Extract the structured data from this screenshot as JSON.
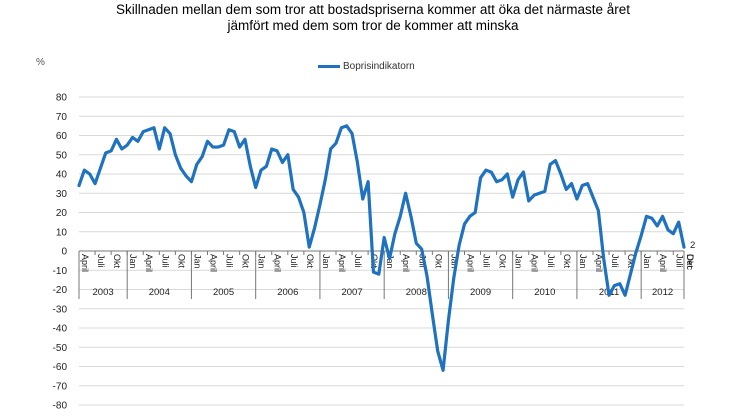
{
  "chart_data": {
    "type": "line",
    "title_lines": [
      "Skillnaden mellan dem som tror att bostadspriserna kommer att öka det närmaste året",
      "jämfört med dem som tror de kommer att minska"
    ],
    "ylabel": "%",
    "ylim": [
      -80,
      80
    ],
    "y_ticks": [
      80,
      70,
      60,
      50,
      40,
      30,
      20,
      10,
      0,
      -10,
      -20,
      -30,
      -40,
      -50,
      -60,
      -70,
      -80
    ],
    "grid": true,
    "legend_position": "top-center",
    "x_start": "2003-04",
    "month_labels": [
      "April",
      "Juli",
      "Okt",
      "Jan",
      "April",
      "Juli",
      "Okt",
      "Jan",
      "April",
      "Juli",
      "Okt",
      "Jan",
      "April",
      "Juli",
      "Okt",
      "Jan",
      "April",
      "Juli",
      "Okt",
      "Jan",
      "April",
      "Juli",
      "Okt",
      "Jan",
      "April",
      "Juli",
      "Okt",
      "Jan",
      "April",
      "Juli",
      "Okt",
      "Jan",
      "April",
      "Juli",
      "Okt",
      "Jan",
      "April",
      "Juli",
      "Okt",
      "Dec"
    ],
    "year_labels": [
      "2003",
      "2004",
      "2005",
      "2006",
      "2007",
      "2008",
      "2009",
      "2010",
      "2011",
      "2012"
    ],
    "end_label": "2",
    "series": [
      {
        "name": "Boprisindikatorn",
        "color": "#1f72c0",
        "values": [
          34,
          42,
          40,
          35,
          43,
          51,
          52,
          58,
          53,
          55,
          59,
          57,
          62,
          63,
          64,
          53,
          64,
          61,
          50,
          43,
          39,
          36,
          45,
          49,
          57,
          54,
          54,
          55,
          63,
          62,
          54,
          58,
          44,
          33,
          42,
          44,
          53,
          52,
          46,
          50,
          32,
          28,
          20,
          2,
          12,
          24,
          37,
          53,
          56,
          64,
          65,
          61,
          46,
          27,
          36,
          -11,
          -12,
          7,
          -4,
          9,
          18,
          30,
          18,
          4,
          1,
          -13,
          -33,
          -52,
          -62,
          -36,
          -14,
          3,
          14,
          18,
          20,
          38,
          42,
          41,
          36,
          37,
          40,
          28,
          37,
          41,
          26,
          29,
          30,
          31,
          45,
          47,
          40,
          32,
          35,
          27,
          34,
          35,
          28,
          21,
          -4,
          -23,
          -18,
          -17,
          -23,
          -12,
          -1,
          8,
          18,
          17,
          13,
          18,
          11,
          9,
          15,
          2
        ]
      }
    ]
  }
}
